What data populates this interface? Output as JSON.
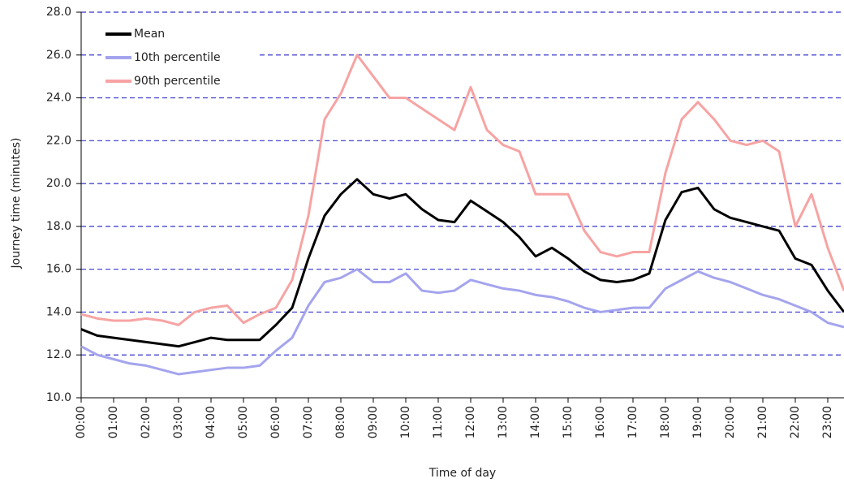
{
  "chart_data": {
    "type": "line",
    "x_label": "Time of day",
    "y_label": "Journey time (minutes)",
    "categories": [
      "00:00",
      null,
      "01:00",
      null,
      "02:00",
      null,
      "03:00",
      null,
      "04:00",
      null,
      "05:00",
      null,
      "06:00",
      null,
      "07:00",
      null,
      "08:00",
      null,
      "09:00",
      null,
      "10:00",
      null,
      "11:00",
      null,
      "12:00",
      null,
      "13:00",
      null,
      "14:00",
      null,
      "15:00",
      null,
      "16:00",
      null,
      "17:00",
      null,
      "18:00",
      null,
      "19:00",
      null,
      "20:00",
      null,
      "21:00",
      null,
      "22:00",
      null,
      "23:00",
      null
    ],
    "series": [
      {
        "name": "Mean",
        "color": "#000000",
        "values": [
          13.2,
          12.9,
          12.8,
          12.7,
          12.6,
          12.5,
          12.4,
          12.6,
          12.8,
          12.7,
          12.7,
          12.7,
          13.4,
          14.2,
          16.5,
          18.5,
          19.5,
          20.2,
          19.5,
          19.3,
          19.5,
          18.8,
          18.3,
          18.2,
          19.2,
          18.7,
          18.2,
          17.5,
          16.6,
          17.0,
          16.5,
          15.9,
          15.5,
          15.4,
          15.5,
          15.8,
          18.3,
          19.6,
          19.8,
          18.8,
          18.4,
          18.2,
          18.0,
          17.8,
          16.5,
          16.2,
          15.0,
          14.0
        ]
      },
      {
        "name": "10th percentile",
        "color": "#a4a4ee",
        "values": [
          12.4,
          12.0,
          11.8,
          11.6,
          11.5,
          11.3,
          11.1,
          11.2,
          11.3,
          11.4,
          11.4,
          11.5,
          12.2,
          12.8,
          14.3,
          15.4,
          15.6,
          16.0,
          15.4,
          15.4,
          15.8,
          15.0,
          14.9,
          15.0,
          15.5,
          15.3,
          15.1,
          15.0,
          14.8,
          14.7,
          14.5,
          14.2,
          14.0,
          14.1,
          14.2,
          14.2,
          15.1,
          15.5,
          15.9,
          15.6,
          15.4,
          15.1,
          14.8,
          14.6,
          14.3,
          14.0,
          13.5,
          13.3
        ]
      },
      {
        "name": "90th percentile",
        "color": "#f7a3a3",
        "values": [
          13.9,
          13.7,
          13.6,
          13.6,
          13.7,
          13.6,
          13.4,
          14.0,
          14.2,
          14.3,
          13.5,
          13.9,
          14.2,
          15.5,
          18.5,
          23.0,
          24.2,
          26.0,
          25.0,
          24.0,
          24.0,
          23.5,
          23.0,
          22.5,
          24.5,
          22.5,
          21.8,
          21.5,
          19.5,
          19.5,
          19.5,
          17.8,
          16.8,
          16.6,
          16.8,
          16.8,
          20.5,
          23.0,
          23.8,
          23.0,
          22.0,
          21.8,
          22.0,
          21.5,
          18.0,
          19.5,
          17.0,
          15.0
        ]
      }
    ],
    "ylim": [
      10,
      28
    ],
    "yticks": [
      {
        "value": 10,
        "label": "10.0"
      },
      {
        "value": 12,
        "label": "12.0"
      },
      {
        "value": 14,
        "label": "14.0"
      },
      {
        "value": 16,
        "label": "16.0"
      },
      {
        "value": 18,
        "label": "18.0"
      },
      {
        "value": 20,
        "label": "20.0"
      },
      {
        "value": 22,
        "label": "22.0"
      },
      {
        "value": 24,
        "label": "24.0"
      },
      {
        "value": 26,
        "label": "26.0"
      },
      {
        "value": 28,
        "label": "28.0"
      }
    ],
    "grid": true,
    "legend": "upper left"
  }
}
